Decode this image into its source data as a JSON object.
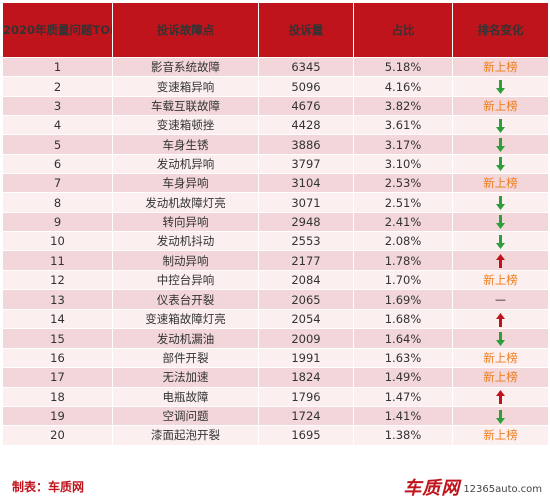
{
  "header": {
    "col1": "2020年质量问题TOP20",
    "col2": "投诉故障点",
    "col3": "投诉量",
    "col4": "占比",
    "col5": "排名变化"
  },
  "colors": {
    "header_bg": "#c0141c",
    "row_odd": "#f2d6d9",
    "row_even": "#fbeff0",
    "new_entry": "#ee7d1c",
    "arrow_down": "#2e9e3a",
    "arrow_up": "#c0141c"
  },
  "rows": [
    {
      "rank": "1",
      "issue": "影音系统故障",
      "count": "6345",
      "share": "5.18%",
      "change": "新上榜",
      "change_type": "new"
    },
    {
      "rank": "2",
      "issue": "变速箱异响",
      "count": "5096",
      "share": "4.16%",
      "change": "",
      "change_type": "down"
    },
    {
      "rank": "3",
      "issue": "车载互联故障",
      "count": "4676",
      "share": "3.82%",
      "change": "新上榜",
      "change_type": "new"
    },
    {
      "rank": "4",
      "issue": "变速箱顿挫",
      "count": "4428",
      "share": "3.61%",
      "change": "",
      "change_type": "down"
    },
    {
      "rank": "5",
      "issue": "车身生锈",
      "count": "3886",
      "share": "3.17%",
      "change": "",
      "change_type": "down"
    },
    {
      "rank": "6",
      "issue": "发动机异响",
      "count": "3797",
      "share": "3.10%",
      "change": "",
      "change_type": "down"
    },
    {
      "rank": "7",
      "issue": "车身异响",
      "count": "3104",
      "share": "2.53%",
      "change": "新上榜",
      "change_type": "new"
    },
    {
      "rank": "8",
      "issue": "发动机故障灯亮",
      "count": "3071",
      "share": "2.51%",
      "change": "",
      "change_type": "down"
    },
    {
      "rank": "9",
      "issue": "转向异响",
      "count": "2948",
      "share": "2.41%",
      "change": "",
      "change_type": "down"
    },
    {
      "rank": "10",
      "issue": "发动机抖动",
      "count": "2553",
      "share": "2.08%",
      "change": "",
      "change_type": "down"
    },
    {
      "rank": "11",
      "issue": "制动异响",
      "count": "2177",
      "share": "1.78%",
      "change": "",
      "change_type": "up"
    },
    {
      "rank": "12",
      "issue": "中控台异响",
      "count": "2084",
      "share": "1.70%",
      "change": "新上榜",
      "change_type": "new"
    },
    {
      "rank": "13",
      "issue": "仪表台开裂",
      "count": "2065",
      "share": "1.69%",
      "change": "—",
      "change_type": "same"
    },
    {
      "rank": "14",
      "issue": "变速箱故障灯亮",
      "count": "2054",
      "share": "1.68%",
      "change": "",
      "change_type": "up"
    },
    {
      "rank": "15",
      "issue": "发动机漏油",
      "count": "2009",
      "share": "1.64%",
      "change": "",
      "change_type": "down"
    },
    {
      "rank": "16",
      "issue": "部件开裂",
      "count": "1991",
      "share": "1.63%",
      "change": "新上榜",
      "change_type": "new"
    },
    {
      "rank": "17",
      "issue": "无法加速",
      "count": "1824",
      "share": "1.49%",
      "change": "新上榜",
      "change_type": "new"
    },
    {
      "rank": "18",
      "issue": "电瓶故障",
      "count": "1796",
      "share": "1.47%",
      "change": "",
      "change_type": "up"
    },
    {
      "rank": "19",
      "issue": "空调问题",
      "count": "1724",
      "share": "1.41%",
      "change": "",
      "change_type": "down"
    },
    {
      "rank": "20",
      "issue": "漆面起泡开裂",
      "count": "1695",
      "share": "1.38%",
      "change": "新上榜",
      "change_type": "new"
    }
  ],
  "footer": {
    "source": "制表：车质网",
    "logo_brand": "车质网",
    "logo_site": "12365auto.com"
  }
}
